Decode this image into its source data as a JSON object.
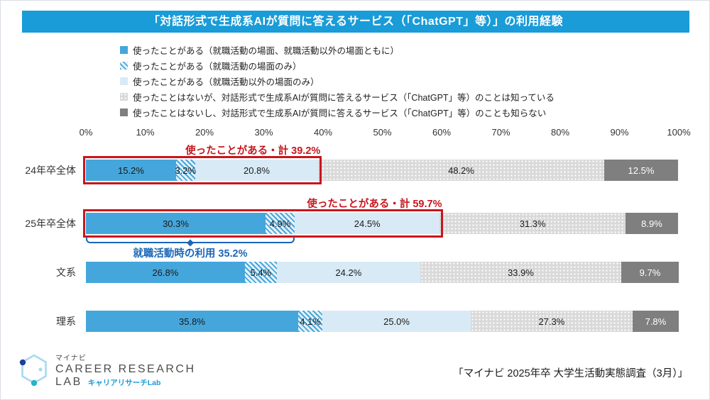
{
  "title": "「対話形式で生成系AIが質問に答えるサービス（「ChatGPT」等）」の利用経験",
  "colors": {
    "banner_blue": "#199CD8",
    "solid_blue": "#45A6DB",
    "hatch_bg": "#E6F2FA",
    "light_blue": "#D8EAF6",
    "dot_gray": "#D9D9D9",
    "dark_gray": "#7F7F7F",
    "annotation_red": "#C8161D",
    "bracket_blue": "#1A67B8"
  },
  "chart_data": {
    "type": "bar",
    "stacked": true,
    "orientation": "horizontal",
    "xlim": [
      0,
      100
    ],
    "x_ticks": [
      "0%",
      "10%",
      "20%",
      "30%",
      "40%",
      "50%",
      "60%",
      "70%",
      "80%",
      "90%",
      "100%"
    ],
    "grid": false,
    "legend_position": "top",
    "categories": [
      "24年卒全体",
      "25年卒全体",
      "文系",
      "理系"
    ],
    "series": [
      {
        "name": "使ったことがある（就職活動の場面、就職活動以外の場面ともに）",
        "style": "solid-blue",
        "values": [
          15.2,
          30.3,
          26.8,
          35.8
        ]
      },
      {
        "name": "使ったことがある（就職活動の場面のみ）",
        "style": "hatch-blue",
        "values": [
          3.2,
          4.9,
          5.4,
          4.1
        ]
      },
      {
        "name": "使ったことがある（就職活動以外の場面のみ）",
        "style": "light-blue",
        "values": [
          20.8,
          24.5,
          24.2,
          25.0
        ]
      },
      {
        "name": "使ったことはないが、対話形式で生成系AIが質問に答えるサービス（「ChatGPT」等）のことは知っている",
        "style": "dot-gray",
        "values": [
          48.2,
          31.3,
          33.9,
          27.3
        ]
      },
      {
        "name": "使ったことはないし、対話形式で生成系AIが質問に答えるサービス（「ChatGPT」等）のことも知らない",
        "style": "dark-gray",
        "values": [
          12.5,
          8.9,
          9.7,
          7.8
        ]
      }
    ],
    "annotations": {
      "total_boxes": [
        {
          "row": 0,
          "span": 39.2,
          "label": "使ったことがある・計 39.2%"
        },
        {
          "row": 1,
          "span": 59.7,
          "label": "使ったことがある・計 59.7%"
        }
      ],
      "bracket": {
        "row": 1,
        "span": 35.2,
        "label": "就職活動時の利用 35.2%"
      }
    }
  },
  "footer": {
    "logo": {
      "top": "マイナビ",
      "line1": "CAREER RESEARCH",
      "line2": "LAB",
      "tagline": "キャリアリサーチLab"
    },
    "source": "「マイナビ 2025年卒 大学生活動実態調査（3月）」"
  }
}
